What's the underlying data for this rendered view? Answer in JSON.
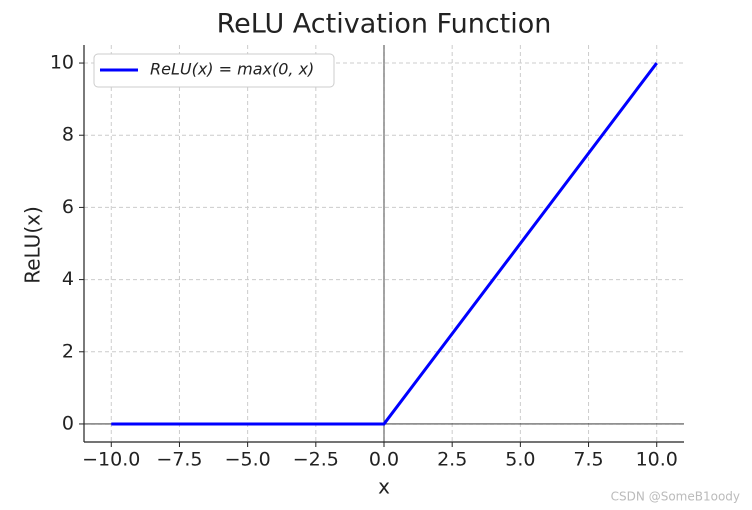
{
  "chart_data": {
    "type": "line",
    "title": "ReLU Activation Function",
    "x_label": "x",
    "y_label": "ReLU(x)",
    "x": [
      -10,
      0,
      10
    ],
    "series": [
      {
        "name": "ReLU(x) = max(0, x)",
        "color": "#0000ff",
        "values": [
          0,
          0,
          10
        ]
      }
    ],
    "xlim": [
      -11,
      11
    ],
    "ylim": [
      -0.5,
      10.5
    ],
    "xticks": [
      {
        "value": -10,
        "label": "−10.0"
      },
      {
        "value": -7.5,
        "label": "−7.5"
      },
      {
        "value": -5,
        "label": "−5.0"
      },
      {
        "value": -2.5,
        "label": "−2.5"
      },
      {
        "value": 0,
        "label": "0.0"
      },
      {
        "value": 2.5,
        "label": "2.5"
      },
      {
        "value": 5,
        "label": "5.0"
      },
      {
        "value": 7.5,
        "label": "7.5"
      },
      {
        "value": 10,
        "label": "10.0"
      }
    ],
    "yticks": [
      0,
      2,
      4,
      6,
      8,
      10
    ],
    "grid": true,
    "legend": "upper left",
    "watermark": "CSDN @SomeB1oody"
  }
}
